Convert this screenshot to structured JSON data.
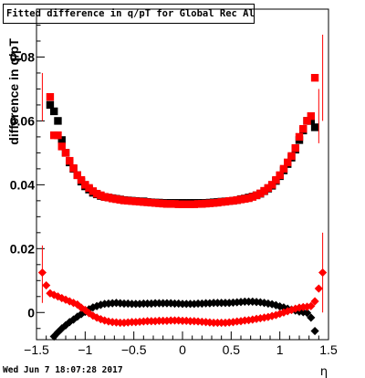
{
  "chart_data": {
    "type": "scatter",
    "title": "Fitted difference in q/pT for Global Rec All EtapT",
    "xlabel": "η",
    "ylabel": "difference in q/pT",
    "xlim": [
      -1.5,
      1.5
    ],
    "ylim": [
      -0.0085,
      0.095
    ],
    "xticks": [
      "−1.5",
      "−1",
      "−0.5",
      "0",
      "0.5",
      "1",
      "1.5"
    ],
    "yticks": [
      "0",
      "0.02",
      "0.04",
      "0.06",
      "0.08"
    ],
    "grid": false,
    "series": [
      {
        "marker": "square",
        "color": "#000000",
        "x": [
          -1.36,
          -1.32,
          -1.28,
          -1.24,
          -1.2,
          -1.16,
          -1.12,
          -1.08,
          -1.04,
          -1.0,
          -0.96,
          -0.92,
          -0.88,
          -0.84,
          -0.8,
          -0.76,
          -0.72,
          -0.68,
          -0.64,
          -0.6,
          -0.56,
          -0.52,
          -0.48,
          -0.44,
          -0.4,
          -0.36,
          -0.32,
          -0.28,
          -0.24,
          -0.2,
          -0.16,
          -0.12,
          -0.08,
          -0.04,
          0.0,
          0.04,
          0.08,
          0.12,
          0.16,
          0.2,
          0.24,
          0.28,
          0.32,
          0.36,
          0.4,
          0.44,
          0.48,
          0.52,
          0.56,
          0.6,
          0.64,
          0.68,
          0.72,
          0.76,
          0.8,
          0.84,
          0.88,
          0.92,
          0.96,
          1.0,
          1.04,
          1.08,
          1.12,
          1.16,
          1.2,
          1.24,
          1.28,
          1.32,
          1.36
        ],
        "y": [
          0.065,
          0.063,
          0.06,
          0.054,
          0.05,
          0.047,
          0.045,
          0.043,
          0.041,
          0.0395,
          0.0385,
          0.0375,
          0.037,
          0.0365,
          0.0362,
          0.036,
          0.0358,
          0.0356,
          0.0354,
          0.0352,
          0.0351,
          0.035,
          0.0349,
          0.0348,
          0.0348,
          0.0346,
          0.0345,
          0.0344,
          0.0344,
          0.0343,
          0.0343,
          0.0343,
          0.0343,
          0.0343,
          0.0343,
          0.0343,
          0.0343,
          0.0343,
          0.0343,
          0.0343,
          0.0343,
          0.0344,
          0.0345,
          0.0346,
          0.0347,
          0.0348,
          0.0349,
          0.035,
          0.0352,
          0.0355,
          0.0357,
          0.036,
          0.0363,
          0.0367,
          0.0372,
          0.038,
          0.0388,
          0.0397,
          0.0412,
          0.0427,
          0.0445,
          0.0465,
          0.0485,
          0.051,
          0.054,
          0.057,
          0.06,
          0.06,
          0.058
        ]
      },
      {
        "marker": "square",
        "color": "#ff0000",
        "x": [
          -1.36,
          -1.32,
          -1.28,
          -1.24,
          -1.2,
          -1.16,
          -1.12,
          -1.08,
          -1.04,
          -1.0,
          -0.96,
          -0.92,
          -0.88,
          -0.84,
          -0.8,
          -0.76,
          -0.72,
          -0.68,
          -0.64,
          -0.6,
          -0.56,
          -0.52,
          -0.48,
          -0.44,
          -0.4,
          -0.36,
          -0.32,
          -0.28,
          -0.24,
          -0.2,
          -0.16,
          -0.12,
          -0.08,
          -0.04,
          0.0,
          0.04,
          0.08,
          0.12,
          0.16,
          0.2,
          0.24,
          0.28,
          0.32,
          0.36,
          0.4,
          0.44,
          0.48,
          0.52,
          0.56,
          0.6,
          0.64,
          0.68,
          0.72,
          0.76,
          0.8,
          0.84,
          0.88,
          0.92,
          0.96,
          1.0,
          1.04,
          1.08,
          1.12,
          1.16,
          1.2,
          1.24,
          1.28,
          1.32,
          1.36
        ],
        "y": [
          0.0675,
          0.0555,
          0.0555,
          0.052,
          0.05,
          0.0475,
          0.0452,
          0.043,
          0.0415,
          0.04,
          0.039,
          0.038,
          0.0372,
          0.0367,
          0.0362,
          0.036,
          0.0357,
          0.0355,
          0.0353,
          0.0351,
          0.035,
          0.0349,
          0.0348,
          0.0347,
          0.0346,
          0.0345,
          0.0344,
          0.0343,
          0.0342,
          0.0341,
          0.034,
          0.034,
          0.034,
          0.0339,
          0.0339,
          0.0339,
          0.0339,
          0.0339,
          0.034,
          0.034,
          0.0341,
          0.0342,
          0.0343,
          0.0344,
          0.0346,
          0.0347,
          0.0349,
          0.035,
          0.0352,
          0.0354,
          0.0356,
          0.0358,
          0.0362,
          0.0367,
          0.0373,
          0.0381,
          0.039,
          0.04,
          0.0415,
          0.043,
          0.045,
          0.047,
          0.049,
          0.0515,
          0.055,
          0.0575,
          0.06,
          0.0615,
          0.0735
        ]
      },
      {
        "marker": "diamond",
        "color": "#000000",
        "x": [
          -1.32,
          -1.28,
          -1.24,
          -1.2,
          -1.16,
          -1.12,
          -1.08,
          -1.04,
          -1.0,
          -0.96,
          -0.92,
          -0.88,
          -0.84,
          -0.8,
          -0.76,
          -0.72,
          -0.68,
          -0.64,
          -0.6,
          -0.56,
          -0.52,
          -0.48,
          -0.44,
          -0.4,
          -0.36,
          -0.32,
          -0.28,
          -0.24,
          -0.2,
          -0.16,
          -0.12,
          -0.08,
          -0.04,
          0.0,
          0.04,
          0.08,
          0.12,
          0.16,
          0.2,
          0.24,
          0.28,
          0.32,
          0.36,
          0.4,
          0.44,
          0.48,
          0.52,
          0.56,
          0.6,
          0.64,
          0.68,
          0.72,
          0.76,
          0.8,
          0.84,
          0.88,
          0.92,
          0.96,
          1.0,
          1.04,
          1.08,
          1.12,
          1.16,
          1.2,
          1.24,
          1.28,
          1.32,
          1.36
        ],
        "y": [
          -0.0075,
          -0.0062,
          -0.005,
          -0.004,
          -0.003,
          -0.0022,
          -0.0013,
          -0.0005,
          0.0002,
          0.001,
          0.0016,
          0.002,
          0.0024,
          0.0027,
          0.0028,
          0.0029,
          0.003,
          0.0029,
          0.0028,
          0.0028,
          0.0027,
          0.0027,
          0.0027,
          0.0028,
          0.0028,
          0.0028,
          0.0029,
          0.0029,
          0.0029,
          0.0029,
          0.0029,
          0.0028,
          0.0028,
          0.0027,
          0.0027,
          0.0027,
          0.0027,
          0.0028,
          0.0028,
          0.0029,
          0.0029,
          0.003,
          0.003,
          0.003,
          0.003,
          0.003,
          0.0031,
          0.0032,
          0.0033,
          0.0034,
          0.0034,
          0.0034,
          0.0033,
          0.0032,
          0.003,
          0.0028,
          0.0026,
          0.0023,
          0.0019,
          0.0016,
          0.0012,
          0.0009,
          0.0006,
          0.0003,
          0.0001,
          -0.0001,
          -0.0016,
          -0.0058
        ]
      },
      {
        "marker": "diamond",
        "color": "#ff0000",
        "x": [
          -1.44,
          -1.4,
          -1.36,
          -1.32,
          -1.28,
          -1.24,
          -1.2,
          -1.16,
          -1.12,
          -1.08,
          -1.04,
          -1.0,
          -0.96,
          -0.92,
          -0.88,
          -0.84,
          -0.8,
          -0.76,
          -0.72,
          -0.68,
          -0.64,
          -0.6,
          -0.56,
          -0.52,
          -0.48,
          -0.44,
          -0.4,
          -0.36,
          -0.32,
          -0.28,
          -0.24,
          -0.2,
          -0.16,
          -0.12,
          -0.08,
          -0.04,
          0.0,
          0.04,
          0.08,
          0.12,
          0.16,
          0.2,
          0.24,
          0.28,
          0.32,
          0.36,
          0.4,
          0.44,
          0.48,
          0.52,
          0.56,
          0.6,
          0.64,
          0.68,
          0.72,
          0.76,
          0.8,
          0.84,
          0.88,
          0.92,
          0.96,
          1.0,
          1.04,
          1.08,
          1.12,
          1.16,
          1.2,
          1.24,
          1.28,
          1.32,
          1.36,
          1.4,
          1.44
        ],
        "y": [
          0.0125,
          0.0085,
          0.006,
          0.0055,
          0.005,
          0.0045,
          0.004,
          0.0035,
          0.003,
          0.0025,
          0.0015,
          0.0008,
          -0.0002,
          -0.001,
          -0.0016,
          -0.0021,
          -0.0025,
          -0.0028,
          -0.003,
          -0.0031,
          -0.0032,
          -0.0032,
          -0.0031,
          -0.003,
          -0.003,
          -0.0029,
          -0.0028,
          -0.0027,
          -0.0027,
          -0.0027,
          -0.0026,
          -0.0026,
          -0.0026,
          -0.0025,
          -0.0025,
          -0.0025,
          -0.0026,
          -0.0026,
          -0.0027,
          -0.0027,
          -0.0028,
          -0.0029,
          -0.003,
          -0.0031,
          -0.0032,
          -0.0032,
          -0.0032,
          -0.0032,
          -0.0031,
          -0.003,
          -0.0028,
          -0.0027,
          -0.0025,
          -0.0024,
          -0.0022,
          -0.002,
          -0.0018,
          -0.0016,
          -0.0014,
          -0.0011,
          -0.0008,
          -0.0004,
          0.0,
          0.0004,
          0.0008,
          0.0012,
          0.0015,
          0.0017,
          0.0018,
          0.002,
          0.0035,
          0.0075,
          0.0125
        ]
      }
    ]
  },
  "timestamp": "Wed Jun  7 18:07:28 2017"
}
